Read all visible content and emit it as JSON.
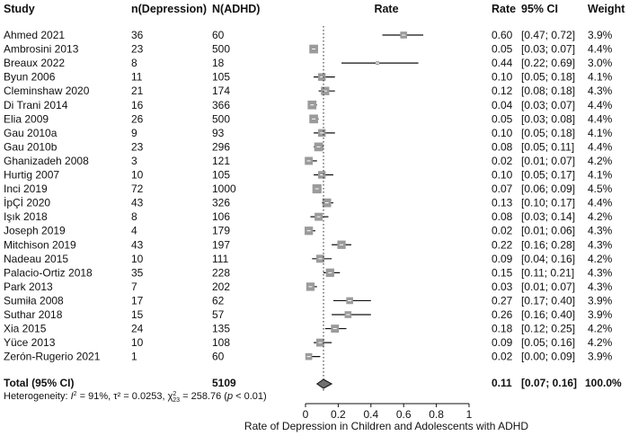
{
  "chart_data": {
    "type": "forest",
    "title": "",
    "columns": {
      "study": "Study",
      "n_dep": "n(Depression)",
      "n_adhd": "N(ADHD)",
      "plot": "Rate",
      "rate": "Rate",
      "ci": "95% CI",
      "weight": "Weight"
    },
    "xlabel": "Rate of Depression in Children and Adolescents with ADHD",
    "xlim": [
      0,
      1
    ],
    "xticks": [
      0,
      0.2,
      0.4,
      0.6,
      0.8,
      1
    ],
    "xtick_labels": [
      "0",
      "0.2",
      "0.4",
      "0.6",
      "0.8",
      "1"
    ],
    "reference_line": 0.11,
    "studies": [
      {
        "study": "Ahmed 2021",
        "n_dep": "36",
        "n_adhd": "60",
        "rate": 0.6,
        "lower": 0.47,
        "upper": 0.72,
        "rate_label": "0.60",
        "ci_label": "[0.47; 0.72]",
        "weight_label": "3.9%"
      },
      {
        "study": "Ambrosini 2013",
        "n_dep": "23",
        "n_adhd": "500",
        "rate": 0.05,
        "lower": 0.03,
        "upper": 0.07,
        "rate_label": "0.05",
        "ci_label": "[0.03; 0.07]",
        "weight_label": "4.4%"
      },
      {
        "study": "Breaux 2022",
        "n_dep": "8",
        "n_adhd": "18",
        "rate": 0.44,
        "lower": 0.22,
        "upper": 0.69,
        "rate_label": "0.44",
        "ci_label": "[0.22; 0.69]",
        "weight_label": "3.0%"
      },
      {
        "study": "Byun 2006",
        "n_dep": "11",
        "n_adhd": "105",
        "rate": 0.1,
        "lower": 0.05,
        "upper": 0.18,
        "rate_label": "0.10",
        "ci_label": "[0.05; 0.18]",
        "weight_label": "4.1%"
      },
      {
        "study": "Cleminshaw 2020",
        "n_dep": "21",
        "n_adhd": "174",
        "rate": 0.12,
        "lower": 0.08,
        "upper": 0.18,
        "rate_label": "0.12",
        "ci_label": "[0.08; 0.18]",
        "weight_label": "4.3%"
      },
      {
        "study": "Di Trani 2014",
        "n_dep": "16",
        "n_adhd": "366",
        "rate": 0.04,
        "lower": 0.03,
        "upper": 0.07,
        "rate_label": "0.04",
        "ci_label": "[0.03; 0.07]",
        "weight_label": "4.4%"
      },
      {
        "study": "Elia 2009",
        "n_dep": "26",
        "n_adhd": "500",
        "rate": 0.05,
        "lower": 0.03,
        "upper": 0.08,
        "rate_label": "0.05",
        "ci_label": "[0.03; 0.08]",
        "weight_label": "4.4%"
      },
      {
        "study": "Gau 2010a",
        "n_dep": "9",
        "n_adhd": "93",
        "rate": 0.1,
        "lower": 0.05,
        "upper": 0.18,
        "rate_label": "0.10",
        "ci_label": "[0.05; 0.18]",
        "weight_label": "4.1%"
      },
      {
        "study": "Gau 2010b",
        "n_dep": "23",
        "n_adhd": "296",
        "rate": 0.08,
        "lower": 0.05,
        "upper": 0.11,
        "rate_label": "0.08",
        "ci_label": "[0.05; 0.11]",
        "weight_label": "4.4%"
      },
      {
        "study": "Ghanizadeh 2008",
        "n_dep": "3",
        "n_adhd": "121",
        "rate": 0.02,
        "lower": 0.01,
        "upper": 0.07,
        "rate_label": "0.02",
        "ci_label": "[0.01; 0.07]",
        "weight_label": "4.2%"
      },
      {
        "study": "Hurtig 2007",
        "n_dep": "10",
        "n_adhd": "105",
        "rate": 0.1,
        "lower": 0.05,
        "upper": 0.17,
        "rate_label": "0.10",
        "ci_label": "[0.05; 0.17]",
        "weight_label": "4.1%"
      },
      {
        "study": "Inci 2019",
        "n_dep": "72",
        "n_adhd": "1000",
        "rate": 0.07,
        "lower": 0.06,
        "upper": 0.09,
        "rate_label": "0.07",
        "ci_label": "[0.06; 0.09]",
        "weight_label": "4.5%"
      },
      {
        "study": "İpÇİ 2020",
        "n_dep": "43",
        "n_adhd": "326",
        "rate": 0.13,
        "lower": 0.1,
        "upper": 0.17,
        "rate_label": "0.13",
        "ci_label": "[0.10; 0.17]",
        "weight_label": "4.4%"
      },
      {
        "study": "Işık 2018",
        "n_dep": "8",
        "n_adhd": "106",
        "rate": 0.08,
        "lower": 0.03,
        "upper": 0.14,
        "rate_label": "0.08",
        "ci_label": "[0.03; 0.14]",
        "weight_label": "4.2%"
      },
      {
        "study": "Joseph 2019",
        "n_dep": "4",
        "n_adhd": "179",
        "rate": 0.02,
        "lower": 0.01,
        "upper": 0.06,
        "rate_label": "0.02",
        "ci_label": "[0.01; 0.06]",
        "weight_label": "4.3%"
      },
      {
        "study": "Mitchison 2019",
        "n_dep": "43",
        "n_adhd": "197",
        "rate": 0.22,
        "lower": 0.16,
        "upper": 0.28,
        "rate_label": "0.22",
        "ci_label": "[0.16; 0.28]",
        "weight_label": "4.3%"
      },
      {
        "study": "Nadeau 2015",
        "n_dep": "10",
        "n_adhd": "111",
        "rate": 0.09,
        "lower": 0.04,
        "upper": 0.16,
        "rate_label": "0.09",
        "ci_label": "[0.04; 0.16]",
        "weight_label": "4.2%"
      },
      {
        "study": "Palacio-Ortiz 2018",
        "n_dep": "35",
        "n_adhd": "228",
        "rate": 0.15,
        "lower": 0.11,
        "upper": 0.21,
        "rate_label": "0.15",
        "ci_label": "[0.11; 0.21]",
        "weight_label": "4.3%"
      },
      {
        "study": "Park 2013",
        "n_dep": "7",
        "n_adhd": "202",
        "rate": 0.03,
        "lower": 0.01,
        "upper": 0.07,
        "rate_label": "0.03",
        "ci_label": "[0.01; 0.07]",
        "weight_label": "4.3%"
      },
      {
        "study": "Sumiła 2008",
        "n_dep": "17",
        "n_adhd": "62",
        "rate": 0.27,
        "lower": 0.17,
        "upper": 0.4,
        "rate_label": "0.27",
        "ci_label": "[0.17; 0.40]",
        "weight_label": "3.9%"
      },
      {
        "study": "Suthar 2018",
        "n_dep": "15",
        "n_adhd": "57",
        "rate": 0.26,
        "lower": 0.16,
        "upper": 0.4,
        "rate_label": "0.26",
        "ci_label": "[0.16; 0.40]",
        "weight_label": "3.9%"
      },
      {
        "study": "Xia 2015",
        "n_dep": "24",
        "n_adhd": "135",
        "rate": 0.18,
        "lower": 0.12,
        "upper": 0.25,
        "rate_label": "0.18",
        "ci_label": "[0.12; 0.25]",
        "weight_label": "4.2%"
      },
      {
        "study": "Yüce 2013",
        "n_dep": "10",
        "n_adhd": "108",
        "rate": 0.09,
        "lower": 0.05,
        "upper": 0.16,
        "rate_label": "0.09",
        "ci_label": "[0.05; 0.16]",
        "weight_label": "4.2%"
      },
      {
        "study": "Zerón-Rugerio 2021",
        "n_dep": "1",
        "n_adhd": "60",
        "rate": 0.02,
        "lower": 0.0,
        "upper": 0.09,
        "rate_label": "0.02",
        "ci_label": "[0.00; 0.09]",
        "weight_label": "3.9%"
      }
    ],
    "total": {
      "label": "Total (95% CI)",
      "n_adhd": "5109",
      "rate": 0.11,
      "lower": 0.07,
      "upper": 0.16,
      "rate_label": "0.11",
      "ci_label": "[0.07; 0.16]",
      "weight_label": "100.0%"
    },
    "heterogeneity": {
      "prefix": "Heterogeneity: ",
      "i2_symbol": "I",
      "i2_value": " = 91%, ",
      "tau2_value": "τ² = 0.0253, ",
      "chi_symbol": "χ",
      "chi_df": "23",
      "chi_value": " = 258.76 (",
      "p_symbol": "p",
      "p_value": " < 0.01)"
    }
  }
}
